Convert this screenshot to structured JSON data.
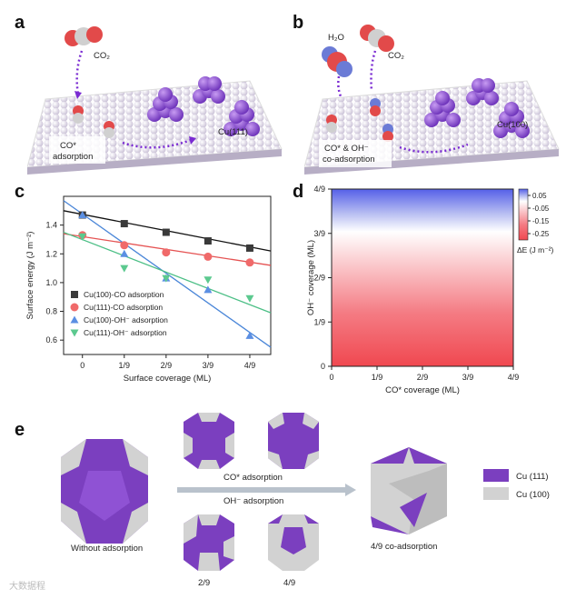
{
  "panels": {
    "a": "a",
    "b": "b",
    "c": "c",
    "d": "d",
    "e": "e"
  },
  "panel_a": {
    "molecule": "CO₂",
    "surface_label": "Cu(111)",
    "caption_line1": "CO* ",
    "caption_line2": "adsorption"
  },
  "panel_b": {
    "molecule1": "H₂O",
    "molecule2": "CO₂",
    "surface_label": "Cu(100)",
    "caption_line1": "CO* & OH⁻",
    "caption_line2": "co-adsorption"
  },
  "chart_data": [
    {
      "type": "scatter",
      "ylabel": "Surface energy (J m⁻²)",
      "xlabel": "Surface coverage (ML)",
      "x_ticks": [
        "0",
        "1/9",
        "2/9",
        "3/9",
        "4/9"
      ],
      "x": [
        0,
        0.1111,
        0.2222,
        0.3333,
        0.4444
      ],
      "ylim": [
        0.5,
        1.6
      ],
      "xlim": [
        -0.05,
        0.5
      ],
      "y_ticks": [
        0.6,
        0.8,
        1.0,
        1.2,
        1.4
      ],
      "series": [
        {
          "name": "Cu(100)-CO adsorption",
          "marker": "square",
          "color": "#3a3a3a",
          "line_color": "#111111",
          "values": [
            1.47,
            1.41,
            1.35,
            1.29,
            1.24
          ],
          "fit": [
            [
              -0.05,
              1.5
            ],
            [
              0.5,
              1.22
            ]
          ]
        },
        {
          "name": "Cu(111)-CO adsorption",
          "marker": "circle",
          "color": "#f06a6a",
          "line_color": "#e55353",
          "values": [
            1.33,
            1.26,
            1.21,
            1.18,
            1.14
          ],
          "fit": [
            [
              -0.05,
              1.34
            ],
            [
              0.5,
              1.12
            ]
          ]
        },
        {
          "name": "Cu(100)-OH⁻ adsorption",
          "marker": "triangle-up",
          "color": "#5b8fe3",
          "line_color": "#4a86d8",
          "values": [
            1.47,
            1.2,
            1.03,
            0.95,
            0.63
          ],
          "fit": [
            [
              -0.05,
              1.57
            ],
            [
              0.5,
              0.55
            ]
          ]
        },
        {
          "name": "Cu(111)-OH⁻ adsorption",
          "marker": "triangle-down",
          "color": "#5cc98f",
          "line_color": "#4cbf86",
          "values": [
            1.32,
            1.1,
            1.03,
            1.02,
            0.89
          ],
          "fit": [
            [
              -0.05,
              1.35
            ],
            [
              0.5,
              0.79
            ]
          ]
        }
      ]
    },
    {
      "type": "heatmap",
      "xlabel": "CO* coverage (ML)",
      "ylabel": "OH⁻ coverage (ML)",
      "x_ticks": [
        "0",
        "1/9",
        "2/9",
        "3/9",
        "4/9"
      ],
      "y_ticks": [
        "0",
        "1/9",
        "2/9",
        "3/9",
        "4/9"
      ],
      "colorbar_label": "ΔE (J m⁻²)",
      "colorbar_ticks": [
        "0.05",
        "-0.05",
        "-0.15",
        "-0.25"
      ],
      "colorbar_range": [
        -0.3,
        0.1
      ],
      "colors": {
        "high": "#5560e8",
        "zero": "#ffffff",
        "low": "#f04850"
      }
    }
  ],
  "panel_e": {
    "without": "Without adsorption",
    "co_label": "CO* adsorption",
    "oh_label": "OH⁻ adsorption",
    "co_ads": "4/9 co-adsorption",
    "frac1": "2/9",
    "frac2": "4/9",
    "legend": [
      {
        "label": "Cu (111)",
        "color": "#7b3fbf"
      },
      {
        "label": "Cu (100)",
        "color": "#d2d2d2"
      }
    ]
  },
  "watermark": "大数据程"
}
